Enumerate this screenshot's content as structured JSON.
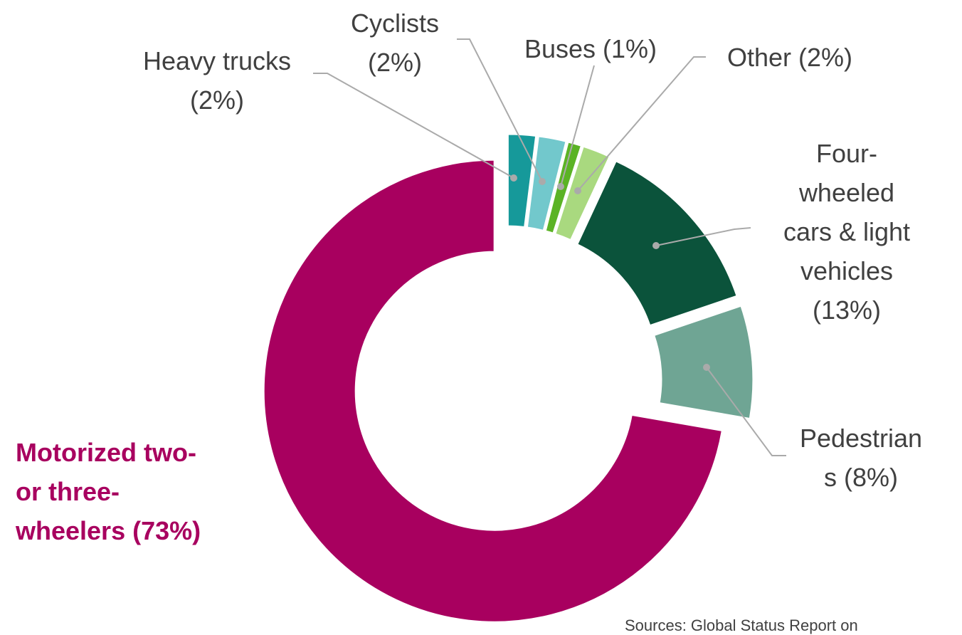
{
  "chart_data": {
    "type": "donut",
    "categories": [
      "Heavy trucks",
      "Cyclists",
      "Buses",
      "Other",
      "Four-wheeled cars & light vehicles",
      "Pedestrians",
      "Motorized two- or three-wheelers"
    ],
    "values": [
      2,
      2,
      1,
      2,
      13,
      8,
      73
    ],
    "value_labels": [
      "(2%)",
      "(2%)",
      "(1%)",
      "(2%)",
      "(13%)",
      "(8%)",
      "(73%)"
    ],
    "colors": [
      "#16999a",
      "#72c8cc",
      "#5bb325",
      "#a9d97f",
      "#0b533b",
      "#6fa594",
      "#a8005f"
    ],
    "source": "Sources: Global Status Report on"
  }
}
